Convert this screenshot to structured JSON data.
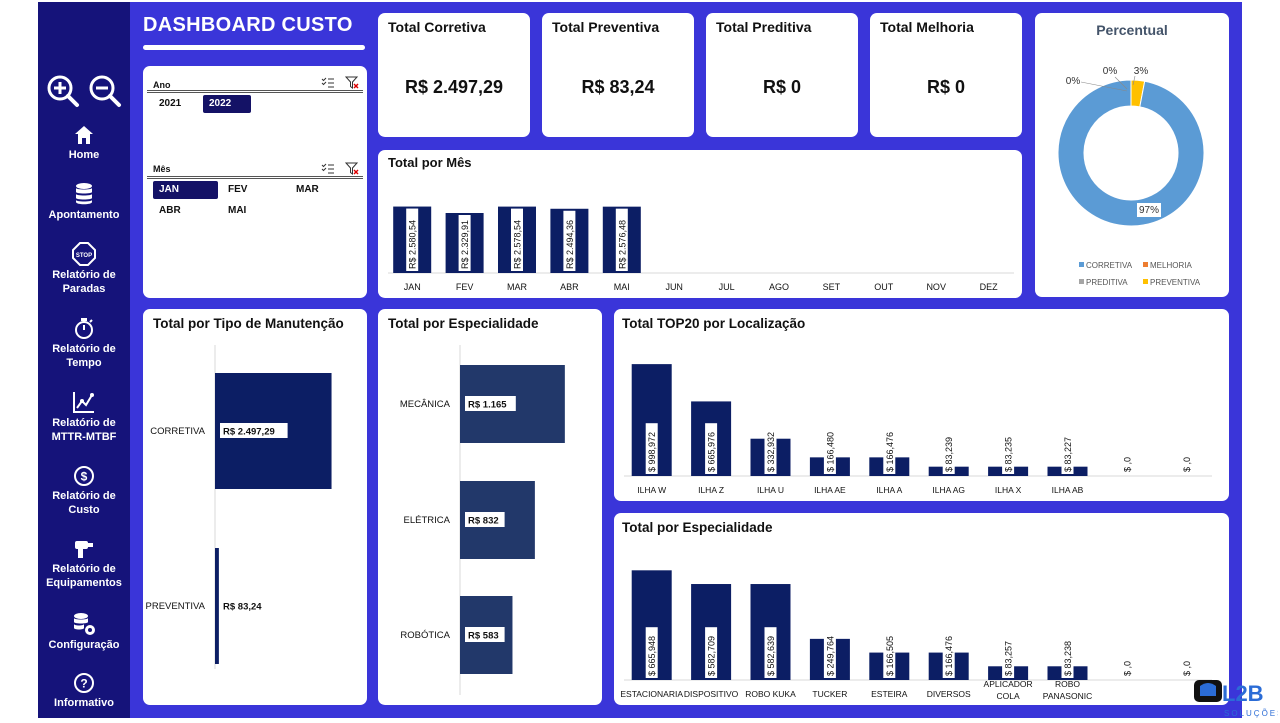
{
  "sidebar": {
    "items": [
      {
        "label": "Home",
        "icon": "home-icon"
      },
      {
        "label": "Apontamento",
        "icon": "database-icon"
      },
      {
        "label": "Relatório de Paradas",
        "icon": "stop-sign-icon"
      },
      {
        "label": "Relatório de Tempo",
        "icon": "stopwatch-icon"
      },
      {
        "label": "Relatório de MTTR-MTBF",
        "icon": "line-chart-icon"
      },
      {
        "label": "Relatório de Custo",
        "icon": "dollar-icon"
      },
      {
        "label": "Relatório de Equipamentos",
        "icon": "drill-icon"
      },
      {
        "label": "Configuração",
        "icon": "database-gear-icon"
      },
      {
        "label": "Informativo",
        "icon": "question-icon"
      }
    ]
  },
  "header": {
    "title": "DASHBOARD CUSTO"
  },
  "slicers": {
    "ano": {
      "label": "Ano",
      "options": [
        "2021",
        "2022"
      ],
      "selected": "2022"
    },
    "mes": {
      "label": "Mês",
      "options": [
        "JAN",
        "FEV",
        "MAR",
        "ABR",
        "MAI"
      ],
      "selected": "JAN"
    }
  },
  "kpis": [
    {
      "label": "Total Corretiva",
      "value": "R$ 2.497,29"
    },
    {
      "label": "Total Preventiva",
      "value": "R$ 83,24"
    },
    {
      "label": "Total Preditiva",
      "value": "R$ 0"
    },
    {
      "label": "Total Melhoria",
      "value": "R$ 0"
    }
  ],
  "logo": {
    "text": "L2B",
    "subtext": "SOLUÇÕES"
  },
  "colors": {
    "sidebar": "#15137a",
    "main": "#3a35d9",
    "bar_dark": "#0c1e64",
    "bar_mid": "#22386a",
    "pie_blue": "#5b9bd5",
    "pie_yellow": "#ffc000",
    "pie_orange": "#ed7d31",
    "pie_gray": "#a5a5a5"
  },
  "chart_data": [
    {
      "id": "percentual",
      "type": "pie",
      "title": "Percentual",
      "slices": [
        {
          "name": "CORRETIVA",
          "value": 97,
          "label": "97%"
        },
        {
          "name": "MELHORIA",
          "value": 0,
          "label": "0%"
        },
        {
          "name": "PREDITIVA",
          "value": 0,
          "label": "0%"
        },
        {
          "name": "PREVENTIVA",
          "value": 3,
          "label": "3%"
        }
      ],
      "legend": [
        "CORRETIVA",
        "MELHORIA",
        "PREDITIVA",
        "PREVENTIVA"
      ]
    },
    {
      "id": "mes",
      "type": "bar",
      "title": "Total por Mês",
      "categories": [
        "JAN",
        "FEV",
        "MAR",
        "ABR",
        "MAI",
        "JUN",
        "JUL",
        "AGO",
        "SET",
        "OUT",
        "NOV",
        "DEZ"
      ],
      "values": [
        2580.54,
        2329.91,
        2578.54,
        2494.36,
        2576.48,
        null,
        null,
        null,
        null,
        null,
        null,
        null
      ],
      "labels": [
        "R$ 2.580,54",
        "R$ 2.329,91",
        "R$ 2.578,54",
        "R$ 2.494,36",
        "R$ 2.576,48",
        "",
        "",
        "",
        "",
        "",
        "",
        ""
      ],
      "ylim": [
        0,
        3600
      ]
    },
    {
      "id": "tipo",
      "type": "bar",
      "orientation": "horizontal",
      "title": "Total por Tipo de Manutenção",
      "categories": [
        "CORRETIVA",
        "PREVENTIVA"
      ],
      "values": [
        2497.29,
        83.24
      ],
      "labels": [
        "R$ 2.497,29",
        "R$ 83,24"
      ],
      "xlim": [
        0,
        3000
      ]
    },
    {
      "id": "especialidade_h",
      "type": "bar",
      "orientation": "horizontal",
      "title": "Total por Especialidade",
      "categories": [
        "MECÂNICA",
        "ELÉTRICA",
        "ROBÓTICA"
      ],
      "values": [
        1165,
        832,
        583
      ],
      "labels": [
        "R$ 1.165",
        "R$ 832",
        "R$ 583"
      ],
      "xlim": [
        0,
        1400
      ]
    },
    {
      "id": "top20",
      "type": "bar",
      "title": "Total TOP20 por Localização",
      "categories": [
        "ILHA W",
        "ILHA Z",
        "ILHA U",
        "ILHA AE",
        "ILHA A",
        "ILHA AG",
        "ILHA X",
        "ILHA AB",
        "",
        ""
      ],
      "values": [
        998.972,
        665.976,
        332.932,
        166.48,
        166.476,
        83.239,
        83.235,
        83.227,
        0,
        0
      ],
      "labels": [
        "$ 998,972",
        "$ 665,976",
        "$ 332,932",
        "$ 166,480",
        "$ 166,476",
        "$ 83,239",
        "$ 83,235",
        "$ 83,227",
        "$ ,0",
        "$ ,0"
      ],
      "ylim": [
        0,
        1000
      ]
    },
    {
      "id": "especialidade_v",
      "type": "bar",
      "title": "Total por Especialidade",
      "categories": [
        "ESTACIONARIA",
        "DISPOSITIVO",
        "ROBO KUKA",
        "TUCKER",
        "ESTEIRA",
        "DIVERSOS",
        "APLICADOR COLA",
        "ROBO PANASONIC",
        "",
        ""
      ],
      "values": [
        665.948,
        582.709,
        582.639,
        249.764,
        166.505,
        166.476,
        83.257,
        83.238,
        0,
        0
      ],
      "labels": [
        "$ 665,948",
        "$ 582,709",
        "$ 582,639",
        "$ 249,764",
        "$ 166,505",
        "$ 166,476",
        "$ 83,257",
        "$ 83,238",
        "$ ,0",
        "$ ,0"
      ],
      "ylim": [
        0,
        680
      ]
    }
  ]
}
